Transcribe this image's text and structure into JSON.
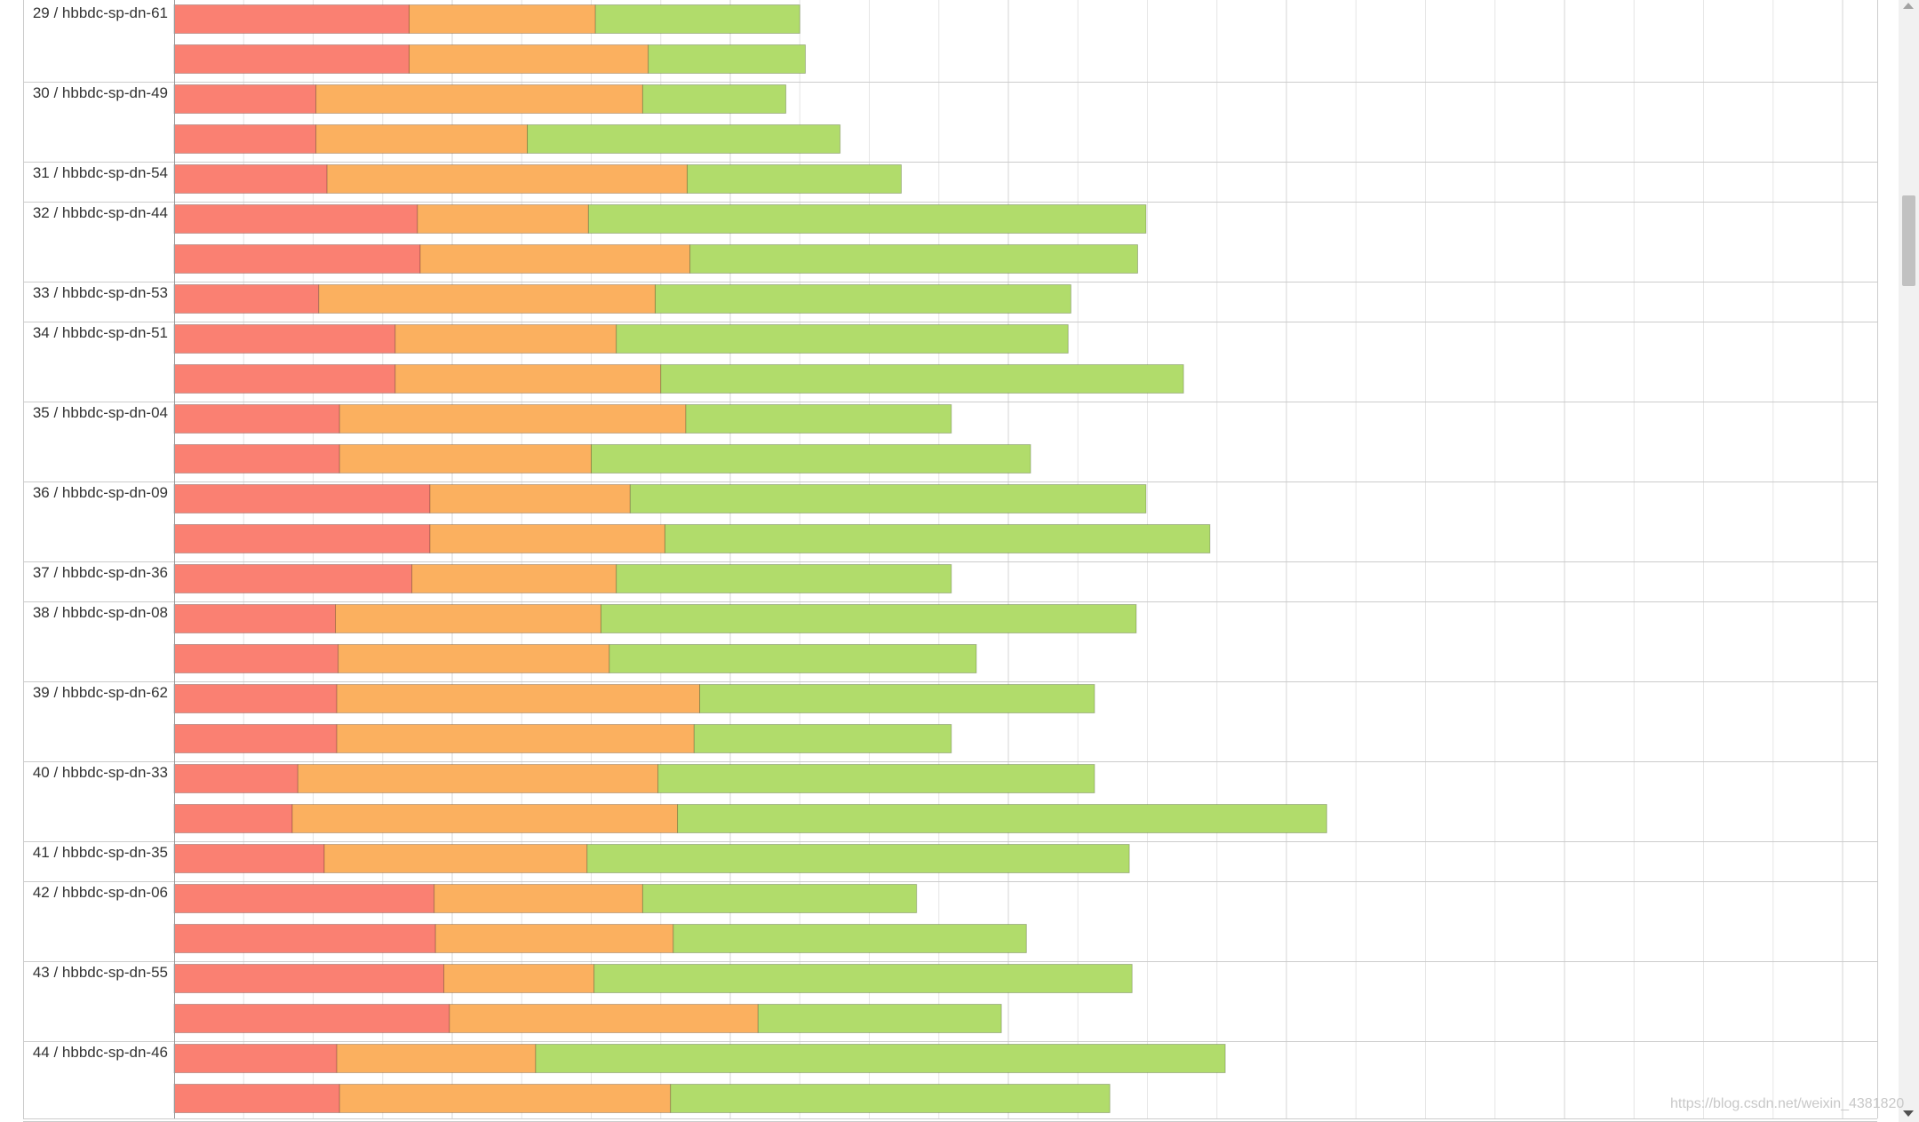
{
  "colors": {
    "red": "#fa8072",
    "orange": "#fbb05f",
    "green": "#b1dc6b",
    "grid": "#e6e6e6",
    "border": "#cccccc"
  },
  "watermark": "https://blog.csdn.net/weixin_4381820",
  "chart_data": {
    "type": "bar",
    "orientation": "horizontal",
    "stacked": true,
    "grid": true,
    "x_major_ticks": [
      0,
      1,
      2,
      3,
      4,
      5,
      6,
      7,
      8,
      9,
      10,
      11,
      12
    ],
    "xlim": [
      0,
      12.3
    ],
    "series_colors": [
      "#fa8072",
      "#fbb05f",
      "#b1dc6b"
    ],
    "groups": [
      {
        "label": "29 / hbbdc-sp-dn-61",
        "bars": [
          [
            1.69,
            1.34,
            1.47
          ],
          [
            1.69,
            1.72,
            1.13
          ]
        ]
      },
      {
        "label": "30 / hbbdc-sp-dn-49",
        "bars": [
          [
            1.02,
            2.35,
            1.03
          ],
          [
            1.02,
            1.52,
            2.25
          ]
        ]
      },
      {
        "label": "31 / hbbdc-sp-dn-54",
        "bars": [
          [
            1.1,
            2.59,
            1.54
          ]
        ]
      },
      {
        "label": "32 / hbbdc-sp-dn-44",
        "bars": [
          [
            1.75,
            1.23,
            4.01
          ],
          [
            1.77,
            1.94,
            3.22
          ]
        ]
      },
      {
        "label": "33 / hbbdc-sp-dn-53",
        "bars": [
          [
            1.04,
            2.42,
            2.99
          ]
        ]
      },
      {
        "label": "34 / hbbdc-sp-dn-51",
        "bars": [
          [
            1.59,
            1.59,
            3.25
          ],
          [
            1.59,
            1.91,
            3.76
          ]
        ]
      },
      {
        "label": "35 / hbbdc-sp-dn-04",
        "bars": [
          [
            1.19,
            2.49,
            1.91
          ],
          [
            1.19,
            1.81,
            3.16
          ]
        ]
      },
      {
        "label": "36 / hbbdc-sp-dn-09",
        "bars": [
          [
            1.84,
            1.44,
            3.71
          ],
          [
            1.84,
            1.69,
            3.92
          ]
        ]
      },
      {
        "label": "37 / hbbdc-sp-dn-36",
        "bars": [
          [
            1.71,
            1.47,
            2.41
          ]
        ]
      },
      {
        "label": "38 / hbbdc-sp-dn-08",
        "bars": [
          [
            1.16,
            1.91,
            3.85
          ],
          [
            1.18,
            1.95,
            2.64
          ]
        ]
      },
      {
        "label": "39 / hbbdc-sp-dn-62",
        "bars": [
          [
            1.17,
            2.61,
            2.84
          ],
          [
            1.17,
            2.57,
            1.85
          ]
        ]
      },
      {
        "label": "40 / hbbdc-sp-dn-33",
        "bars": [
          [
            0.89,
            2.59,
            3.14
          ],
          [
            0.85,
            2.77,
            4.67
          ]
        ]
      },
      {
        "label": "41 / hbbdc-sp-dn-35",
        "bars": [
          [
            1.08,
            1.89,
            3.9
          ]
        ]
      },
      {
        "label": "42 / hbbdc-sp-dn-06",
        "bars": [
          [
            1.87,
            1.5,
            1.97
          ],
          [
            1.88,
            1.71,
            2.54
          ]
        ]
      },
      {
        "label": "43 / hbbdc-sp-dn-55",
        "bars": [
          [
            1.94,
            1.08,
            3.87
          ],
          [
            1.98,
            2.22,
            1.75
          ]
        ]
      },
      {
        "label": "44 / hbbdc-sp-dn-46",
        "bars": [
          [
            1.17,
            1.43,
            4.96
          ],
          [
            1.19,
            2.38,
            3.16
          ]
        ]
      }
    ]
  }
}
